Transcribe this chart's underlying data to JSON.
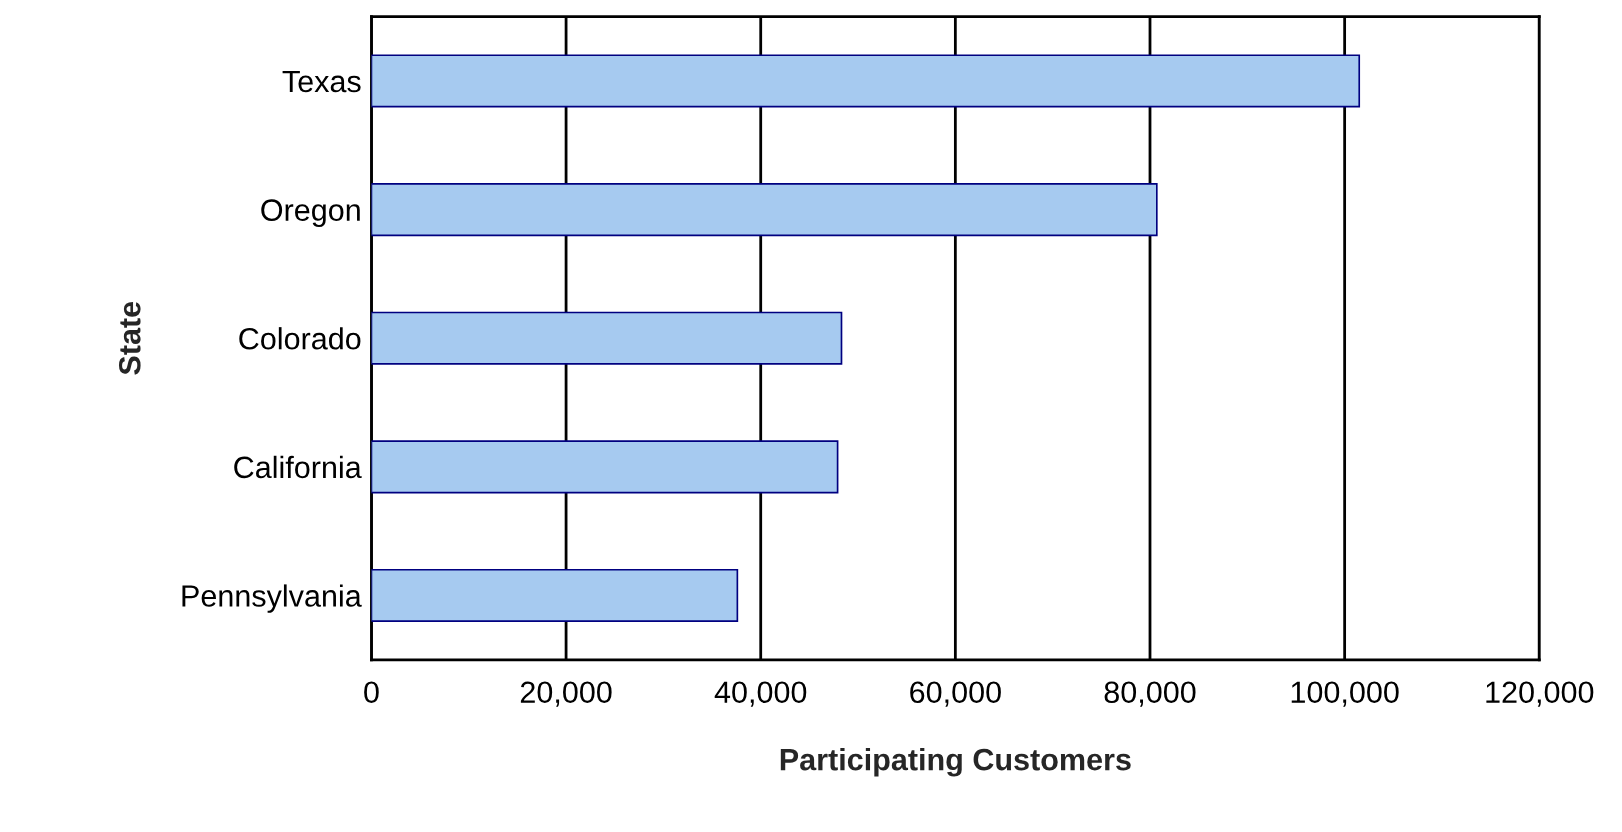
{
  "chart_data": {
    "type": "bar",
    "orientation": "horizontal",
    "xlabel": "Participating Customers",
    "ylabel": "State",
    "categories": [
      "Texas",
      "Oregon",
      "Colorado",
      "California",
      "Pennsylvania"
    ],
    "values": [
      101500,
      80700,
      48300,
      47900,
      37600
    ],
    "color": "#a6caf0",
    "xlim": [
      0,
      120000
    ],
    "xticks": [
      0,
      {
        "value": 20000,
        "label": "20,000"
      },
      {
        "value": 40000,
        "label": "40,000"
      },
      {
        "value": 60000,
        "label": "60,000"
      },
      {
        "value": 80000,
        "label": "80,000"
      },
      {
        "value": 100000,
        "label": "100,000"
      },
      {
        "value": 120000,
        "label": "120,000"
      }
    ],
    "grid": "x",
    "legend": false
  }
}
